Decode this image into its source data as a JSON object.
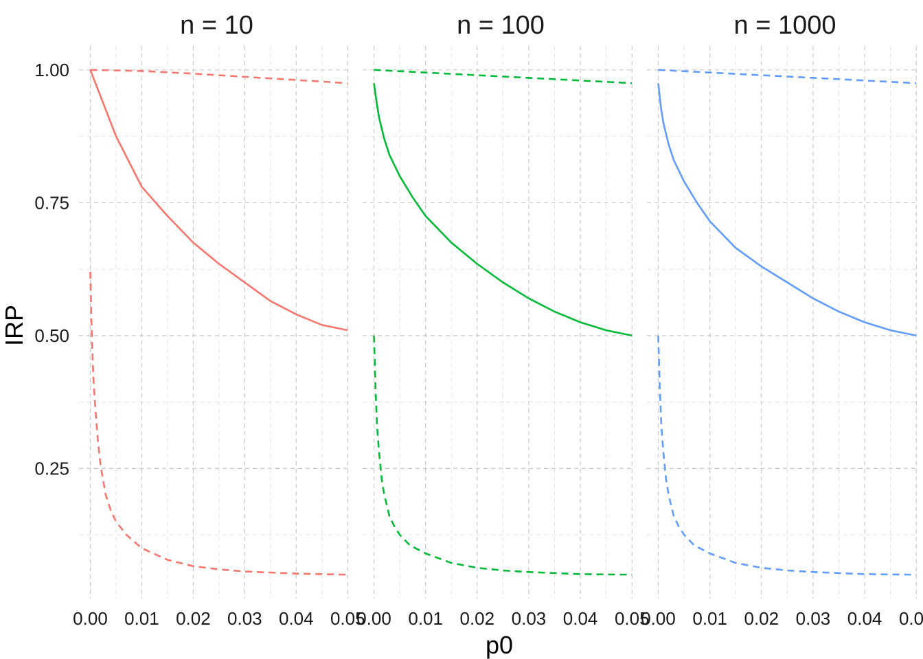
{
  "chart_data": {
    "type": "line",
    "xlabel": "p0",
    "ylabel": "IRP",
    "x_ticks": [
      "0.00",
      "0.01",
      "0.02",
      "0.03",
      "0.04",
      "0.05"
    ],
    "y_ticks": [
      "0.25",
      "0.50",
      "0.75",
      "1.00"
    ],
    "xlim": [
      -0.0022,
      0.0505
    ],
    "ylim": [
      0.005,
      1.045
    ],
    "grid": true,
    "legend": "none",
    "panels": [
      {
        "title": "n = 10",
        "color": "#F8766D",
        "series": [
          {
            "style": "solid",
            "x": [
              0,
              0.005,
              0.01,
              0.015,
              0.02,
              0.025,
              0.03,
              0.035,
              0.04,
              0.045,
              0.05
            ],
            "y": [
              1.0,
              0.875,
              0.78,
              0.725,
              0.675,
              0.635,
              0.6,
              0.565,
              0.54,
              0.52,
              0.51
            ]
          },
          {
            "style": "dashed",
            "x": [
              0,
              0.01,
              0.02,
              0.03,
              0.04,
              0.05
            ],
            "y": [
              1.0,
              0.998,
              0.993,
              0.987,
              0.981,
              0.975
            ]
          },
          {
            "style": "dashed",
            "x": [
              0,
              0.0003,
              0.0006,
              0.001,
              0.0015,
              0.002,
              0.003,
              0.004,
              0.005,
              0.007,
              0.01,
              0.015,
              0.02,
              0.025,
              0.03,
              0.04,
              0.05
            ],
            "y": [
              0.62,
              0.5,
              0.42,
              0.36,
              0.3,
              0.255,
              0.2,
              0.17,
              0.15,
              0.125,
              0.1,
              0.078,
              0.066,
              0.06,
              0.056,
              0.052,
              0.05
            ]
          }
        ]
      },
      {
        "title": "n = 100",
        "color": "#00BA38",
        "series": [
          {
            "style": "solid",
            "x": [
              0,
              0.0005,
              0.001,
              0.002,
              0.003,
              0.005,
              0.0075,
              0.01,
              0.015,
              0.02,
              0.025,
              0.03,
              0.035,
              0.04,
              0.045,
              0.05
            ],
            "y": [
              0.975,
              0.94,
              0.91,
              0.87,
              0.84,
              0.8,
              0.76,
              0.725,
              0.675,
              0.635,
              0.6,
              0.57,
              0.545,
              0.525,
              0.51,
              0.5
            ]
          },
          {
            "style": "dashed",
            "x": [
              0,
              0.01,
              0.02,
              0.03,
              0.04,
              0.05
            ],
            "y": [
              1.0,
              0.995,
              0.99,
              0.985,
              0.98,
              0.975
            ]
          },
          {
            "style": "dashed",
            "x": [
              0,
              0.0003,
              0.0006,
              0.001,
              0.0015,
              0.002,
              0.003,
              0.004,
              0.005,
              0.007,
              0.01,
              0.015,
              0.02,
              0.025,
              0.03,
              0.04,
              0.05
            ],
            "y": [
              0.5,
              0.4,
              0.33,
              0.28,
              0.23,
              0.2,
              0.16,
              0.14,
              0.125,
              0.105,
              0.09,
              0.072,
              0.063,
              0.058,
              0.055,
              0.051,
              0.05
            ]
          }
        ]
      },
      {
        "title": "n = 1000",
        "color": "#619CFF",
        "series": [
          {
            "style": "solid",
            "x": [
              0,
              0.0005,
              0.001,
              0.002,
              0.003,
              0.005,
              0.0075,
              0.01,
              0.015,
              0.02,
              0.025,
              0.03,
              0.035,
              0.04,
              0.045,
              0.05
            ],
            "y": [
              0.975,
              0.93,
              0.9,
              0.86,
              0.83,
              0.79,
              0.75,
              0.715,
              0.665,
              0.63,
              0.6,
              0.57,
              0.545,
              0.525,
              0.51,
              0.5
            ]
          },
          {
            "style": "dashed",
            "x": [
              0,
              0.01,
              0.02,
              0.03,
              0.04,
              0.05
            ],
            "y": [
              1.0,
              0.995,
              0.99,
              0.985,
              0.98,
              0.975
            ]
          },
          {
            "style": "dashed",
            "x": [
              0,
              0.0003,
              0.0006,
              0.001,
              0.0015,
              0.002,
              0.003,
              0.004,
              0.005,
              0.007,
              0.01,
              0.015,
              0.02,
              0.025,
              0.03,
              0.04,
              0.05
            ],
            "y": [
              0.5,
              0.4,
              0.33,
              0.28,
              0.23,
              0.2,
              0.16,
              0.14,
              0.125,
              0.105,
              0.09,
              0.072,
              0.063,
              0.058,
              0.055,
              0.051,
              0.05
            ]
          }
        ]
      }
    ]
  }
}
